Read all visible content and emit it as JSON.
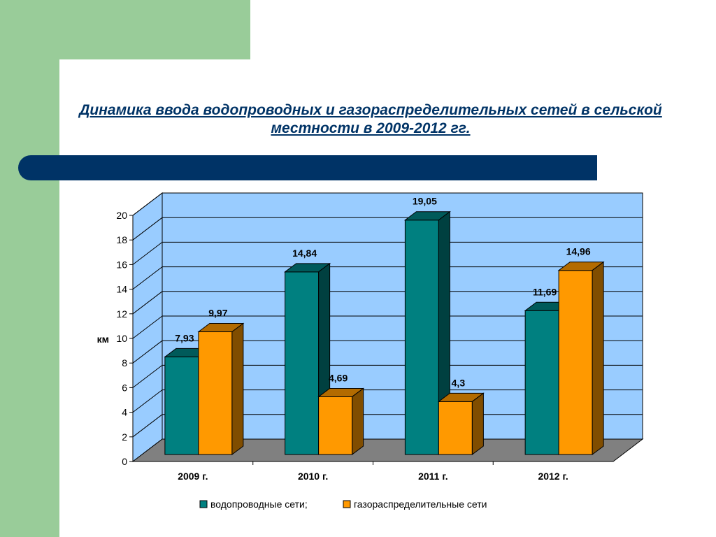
{
  "title": "Динамика ввода водопроводных и газораспределительных сетей в сельской местности в 2009-2012 гг.",
  "colors": {
    "water": "#008080",
    "gas": "#ff9900",
    "wall": "#99ccff",
    "floor": "#808080",
    "band": "#003366"
  },
  "chart_data": {
    "type": "bar",
    "categories": [
      "2009 г.",
      "2010 г.",
      "2011 г.",
      "2012 г."
    ],
    "series": [
      {
        "name": "водопроводные сети;",
        "values": [
          7.93,
          14.84,
          19.05,
          11.69
        ],
        "labels": [
          "7,93",
          "14,84",
          "19,05",
          "11,69"
        ]
      },
      {
        "name": "газораспределительные сети",
        "values": [
          9.97,
          4.69,
          4.3,
          14.96
        ],
        "labels": [
          "9,97",
          "4,69",
          "4,3",
          "14,96"
        ]
      }
    ],
    "ylabel": "км",
    "ylim": [
      0,
      20
    ],
    "yticks": [
      0,
      2,
      4,
      6,
      8,
      10,
      12,
      14,
      16,
      18,
      20
    ],
    "grid": true,
    "legend": "bottom"
  }
}
